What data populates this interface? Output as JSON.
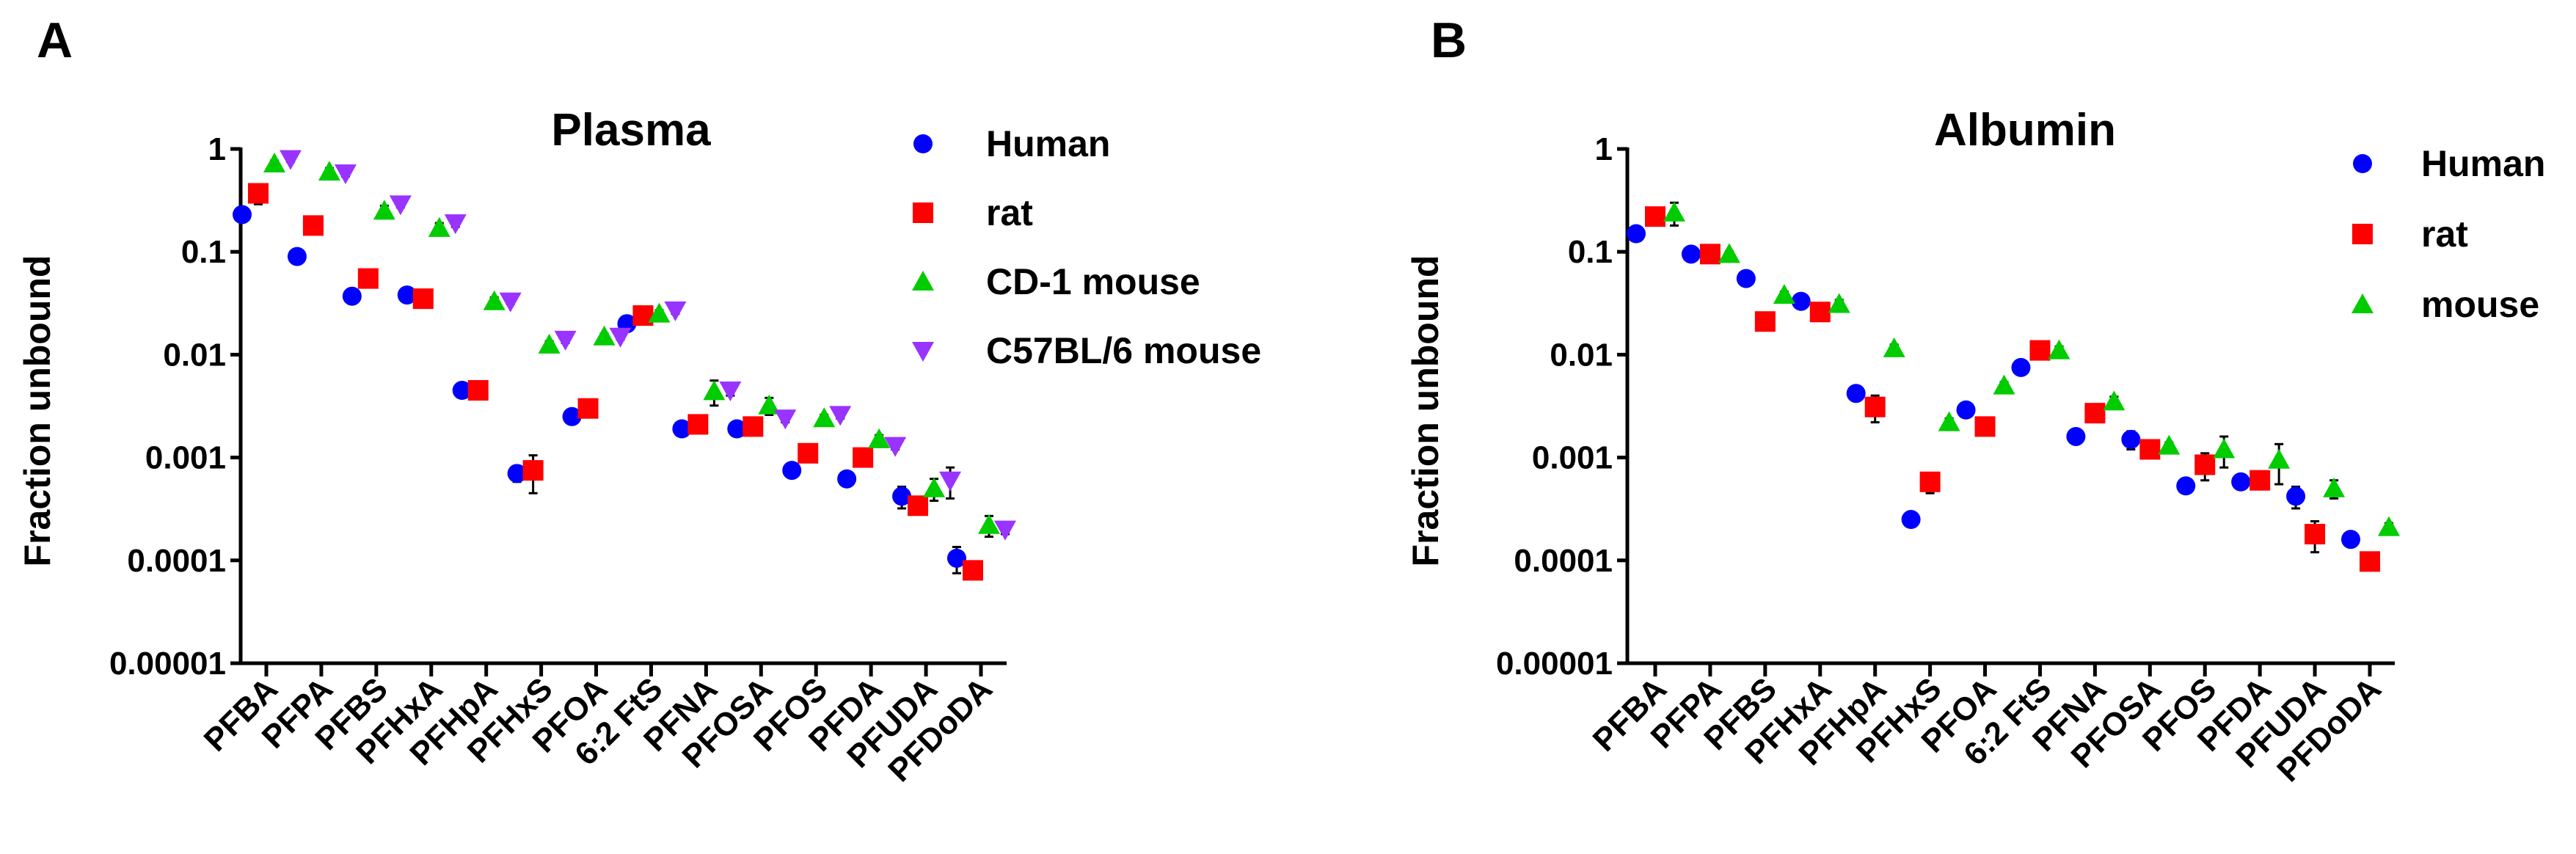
{
  "chart_data": [
    {
      "type": "scatter",
      "panel": "A",
      "title": "Plasma",
      "ylabel": "Fraction unbound",
      "xlabel": "",
      "yscale": "log",
      "ylim": [
        1e-05,
        1
      ],
      "yticks": [
        1,
        0.1,
        0.01,
        0.001,
        0.0001,
        1e-05
      ],
      "ytick_labels": [
        "1",
        "0.1",
        "0.01",
        "0.001",
        "0.0001",
        "0.00001"
      ],
      "categories": [
        "PFBA",
        "PFPA",
        "PFBS",
        "PFHxA",
        "PFHpA",
        "PFHxS",
        "PFOA",
        "6:2 FtS",
        "PFNA",
        "PFOSA",
        "PFOS",
        "PFDA",
        "PFUDA",
        "PFDoDA"
      ],
      "legend_position": "top-right",
      "series": [
        {
          "name": "Human",
          "marker": "circle",
          "color": "#0000ff",
          "values": [
            0.23,
            0.09,
            0.037,
            0.038,
            0.0045,
            0.0007,
            0.0025,
            0.02,
            0.0019,
            0.0019,
            0.00075,
            0.00062,
            0.00042,
            0.000105
          ],
          "err": [
            0.03,
            0.006,
            0.003,
            0.003,
            0.0003,
            0.00012,
            0.0002,
            0.002,
            0.0002,
            0.0002,
            8e-05,
            4e-05,
            0.0001,
            3e-05
          ]
        },
        {
          "name": "rat",
          "marker": "square",
          "color": "#ff0000",
          "values": [
            0.37,
            0.18,
            0.055,
            0.035,
            0.0045,
            0.00075,
            0.003,
            0.024,
            0.0021,
            0.002,
            0.0011,
            0.001,
            0.00034,
            8e-05
          ],
          "err": [
            0.08,
            0.02,
            0.005,
            0.003,
            0.0004,
            0.0003,
            0.0003,
            0.002,
            0.0002,
            0.0002,
            0.0001,
            0.0001,
            4e-05,
            1e-05
          ]
        },
        {
          "name": "CD-1 mouse",
          "marker": "triangle",
          "color": "#00cc00",
          "values": [
            0.72,
            0.6,
            0.25,
            0.17,
            0.033,
            0.0125,
            0.015,
            0.025,
            0.0044,
            0.0032,
            0.0024,
            0.0015,
            0.0005,
            0.00022
          ],
          "err": [
            0.05,
            0.05,
            0.03,
            0.02,
            0.003,
            0.001,
            0.001,
            0.002,
            0.0012,
            0.0006,
            0.0002,
            0.00015,
            0.00012,
            5e-05
          ]
        },
        {
          "name": "C57BL/6 mouse",
          "marker": "triangle-down",
          "color": "#9933ff",
          "values": [
            0.8,
            0.58,
            0.29,
            0.19,
            0.033,
            0.014,
            0.015,
            0.027,
            0.0045,
            0.0024,
            0.0026,
            0.0013,
            0.0006,
            0.0002
          ],
          "err": [
            0.05,
            0.04,
            0.02,
            0.015,
            0.002,
            0.001,
            0.001,
            0.002,
            0.0005,
            0.0002,
            0.0002,
            0.0001,
            0.0002,
            2e-05
          ]
        }
      ]
    },
    {
      "type": "scatter",
      "panel": "B",
      "title": "Albumin",
      "ylabel": "Fraction unbound",
      "xlabel": "",
      "yscale": "log",
      "ylim": [
        1e-05,
        1
      ],
      "yticks": [
        1,
        0.1,
        0.01,
        0.001,
        0.0001,
        1e-05
      ],
      "ytick_labels": [
        "1",
        "0.1",
        "0.01",
        "0.001",
        "0.0001",
        "0.00001"
      ],
      "categories": [
        "PFBA",
        "PFPA",
        "PFBS",
        "PFHxA",
        "PFHpA",
        "PFHxS",
        "PFOA",
        "6:2 FtS",
        "PFNA",
        "PFOSA",
        "PFOS",
        "PFDA",
        "PFUDA",
        "PFDoDA"
      ],
      "legend_position": "top-right",
      "series": [
        {
          "name": "Human",
          "marker": "circle",
          "color": "#0000ff",
          "values": [
            0.15,
            0.095,
            0.055,
            0.033,
            0.0042,
            0.00025,
            0.0029,
            0.0075,
            0.0016,
            0.0015,
            0.00053,
            0.00058,
            0.00042,
            0.00016
          ],
          "err": [
            0.015,
            0.008,
            0.004,
            0.003,
            0.0004,
            2e-05,
            0.0002,
            0.0006,
            0.0001,
            0.0003,
            5e-05,
            5e-05,
            0.0001,
            2e-05
          ]
        },
        {
          "name": "rat",
          "marker": "square",
          "color": "#ff0000",
          "values": [
            0.22,
            0.095,
            0.021,
            0.026,
            0.0031,
            0.00058,
            0.002,
            0.011,
            0.0027,
            0.0012,
            0.00085,
            0.0006,
            0.00018,
            9.75e-05
          ],
          "err": [
            0.02,
            0.008,
            0.002,
            0.003,
            0.0009,
            0.00013,
            0.0002,
            0.001,
            0.0003,
            0.0002,
            0.00025,
            0.0001,
            6e-05,
            1e-05
          ]
        },
        {
          "name": "mouse",
          "marker": "triangle",
          "color": "#00cc00",
          "values": [
            0.24,
            0.095,
            0.038,
            0.031,
            0.0115,
            0.0022,
            0.005,
            0.011,
            0.0035,
            0.0013,
            0.0012,
            0.00095,
            0.0005,
            0.00021
          ],
          "err": [
            0.06,
            0.006,
            0.003,
            0.003,
            0.001,
            0.0002,
            0.0004,
            0.001,
            0.0004,
            0.0001,
            0.0004,
            0.0004,
            0.0001,
            2e-05
          ]
        }
      ]
    }
  ]
}
